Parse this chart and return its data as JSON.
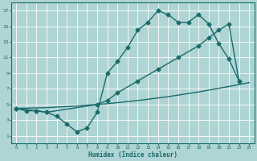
{
  "xlabel": "Humidex (Indice chaleur)",
  "bg_color": "#aed4d4",
  "grid_color": "#ffffff",
  "line_color": "#1a6b6b",
  "line1_x": [
    0,
    1,
    2,
    3,
    4,
    5,
    6,
    7,
    8,
    9,
    10,
    11,
    12,
    13,
    14,
    15,
    16,
    17,
    18,
    19,
    20,
    21,
    22
  ],
  "line1_y": [
    4.5,
    4.2,
    4.2,
    4.0,
    3.5,
    2.5,
    1.5,
    2.0,
    4.0,
    9.0,
    10.5,
    12.3,
    14.5,
    15.5,
    17.0,
    16.5,
    15.5,
    15.5,
    16.5,
    15.3,
    12.8,
    10.8,
    8.0
  ],
  "line2_x": [
    0,
    2,
    3,
    8,
    9,
    10,
    12,
    14,
    16,
    18,
    19,
    20,
    21,
    22
  ],
  "line2_y": [
    4.5,
    4.2,
    4.0,
    5.0,
    5.5,
    6.5,
    8.0,
    9.5,
    11.0,
    12.5,
    13.5,
    14.5,
    15.3,
    8.0
  ],
  "line3_x": [
    0,
    3,
    6,
    9,
    12,
    15,
    18,
    21,
    23
  ],
  "line3_y": [
    4.5,
    4.6,
    4.8,
    5.1,
    5.5,
    6.0,
    6.6,
    7.3,
    7.8
  ],
  "xlim": [
    -0.5,
    23.5
  ],
  "ylim": [
    0,
    18
  ],
  "xticks": [
    0,
    1,
    2,
    3,
    4,
    5,
    6,
    7,
    8,
    9,
    10,
    11,
    12,
    13,
    14,
    15,
    16,
    17,
    18,
    19,
    20,
    21,
    22,
    23
  ],
  "yticks": [
    1,
    3,
    5,
    7,
    9,
    11,
    13,
    15,
    17
  ],
  "markersize": 2.5,
  "linewidth": 1.0
}
